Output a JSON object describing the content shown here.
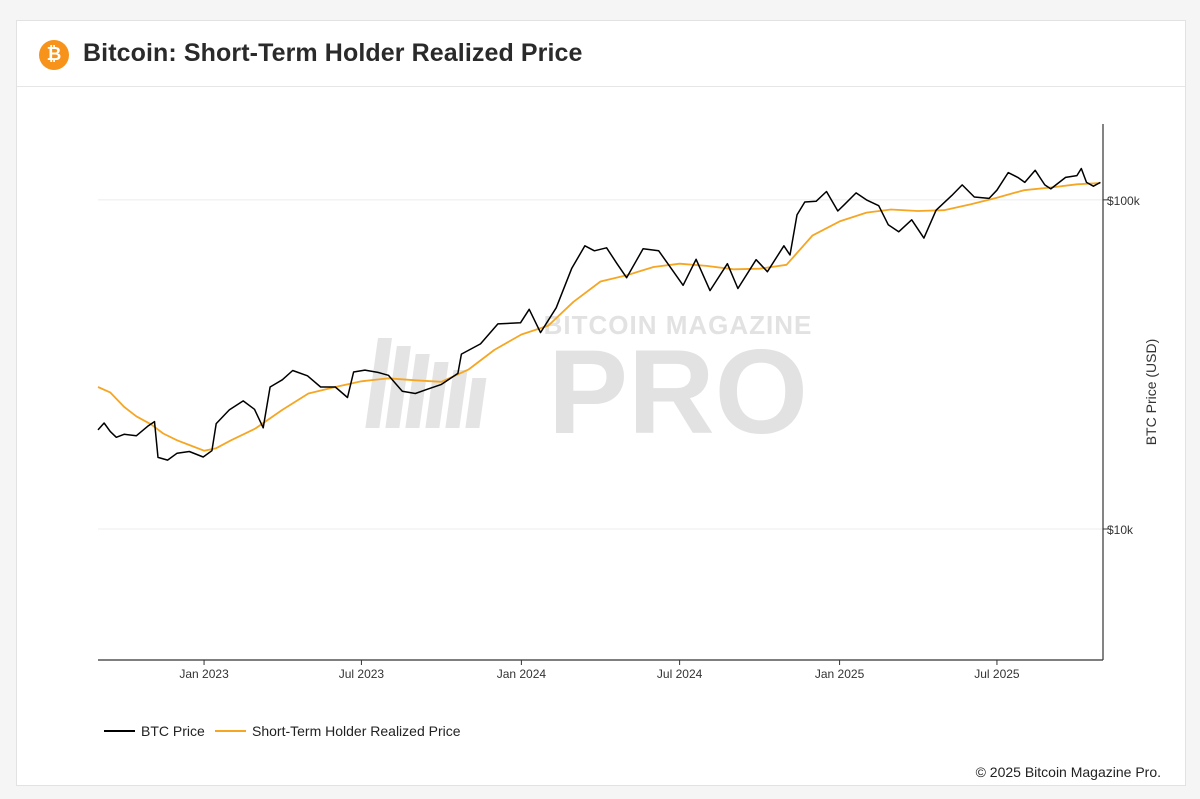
{
  "header": {
    "logo_glyph": "₿",
    "title": "Bitcoin: Short-Term Holder Realized Price"
  },
  "footer": {
    "copyright": "© 2025 Bitcoin Magazine Pro."
  },
  "watermark": {
    "top_text": "BITCOIN MAGAZINE",
    "big_text": "PRO",
    "color": "#e2e2e2"
  },
  "colors": {
    "btc": "#000000",
    "sth": "#f5a623",
    "grid": "#ececec",
    "axis": "#333333"
  },
  "chart_data": {
    "type": "line",
    "title": "Bitcoin: Short-Term Holder Realized Price",
    "xlabel": "",
    "ylabel": "BTC Price (USD)",
    "y_scale": "log",
    "ylim": [
      4000,
      170000
    ],
    "xlim": [
      "2022-09-01",
      "2025-10-31"
    ],
    "x_ticks": [
      {
        "date": "2023-01-01",
        "label": "Jan 2023"
      },
      {
        "date": "2023-07-01",
        "label": "Jul 2023"
      },
      {
        "date": "2024-01-01",
        "label": "Jan 2024"
      },
      {
        "date": "2024-07-01",
        "label": "Jul 2024"
      },
      {
        "date": "2025-01-01",
        "label": "Jan 2025"
      },
      {
        "date": "2025-07-01",
        "label": "Jul 2025"
      }
    ],
    "y_ticks": [
      {
        "value": 10000,
        "label": "$10k"
      },
      {
        "value": 100000,
        "label": "$100k"
      }
    ],
    "grid": true,
    "legend_position": "bottom-left",
    "series": [
      {
        "name": "BTC Price",
        "color": "#000000",
        "points": [
          [
            "2022-09-01",
            20000
          ],
          [
            "2022-09-08",
            21000
          ],
          [
            "2022-09-15",
            19800
          ],
          [
            "2022-09-22",
            19000
          ],
          [
            "2022-10-01",
            19400
          ],
          [
            "2022-10-15",
            19200
          ],
          [
            "2022-10-29",
            20600
          ],
          [
            "2022-11-05",
            21200
          ],
          [
            "2022-11-09",
            16500
          ],
          [
            "2022-11-20",
            16200
          ],
          [
            "2022-12-01",
            17000
          ],
          [
            "2022-12-15",
            17200
          ],
          [
            "2022-12-31",
            16550
          ],
          [
            "2023-01-10",
            17300
          ],
          [
            "2023-01-15",
            20900
          ],
          [
            "2023-01-30",
            23000
          ],
          [
            "2023-02-15",
            24500
          ],
          [
            "2023-02-28",
            23100
          ],
          [
            "2023-03-10",
            20300
          ],
          [
            "2023-03-18",
            27000
          ],
          [
            "2023-04-01",
            28400
          ],
          [
            "2023-04-13",
            30300
          ],
          [
            "2023-04-30",
            29200
          ],
          [
            "2023-05-15",
            27000
          ],
          [
            "2023-06-01",
            27000
          ],
          [
            "2023-06-15",
            25100
          ],
          [
            "2023-06-22",
            30000
          ],
          [
            "2023-07-05",
            30400
          ],
          [
            "2023-07-20",
            29900
          ],
          [
            "2023-08-01",
            29300
          ],
          [
            "2023-08-17",
            26200
          ],
          [
            "2023-09-01",
            25800
          ],
          [
            "2023-09-15",
            26600
          ],
          [
            "2023-10-01",
            27500
          ],
          [
            "2023-10-20",
            29700
          ],
          [
            "2023-10-24",
            34000
          ],
          [
            "2023-11-15",
            36500
          ],
          [
            "2023-12-05",
            42000
          ],
          [
            "2023-12-31",
            42300
          ],
          [
            "2024-01-10",
            46500
          ],
          [
            "2024-01-23",
            39500
          ],
          [
            "2024-02-10",
            47000
          ],
          [
            "2024-02-28",
            62000
          ],
          [
            "2024-03-14",
            72500
          ],
          [
            "2024-03-25",
            70000
          ],
          [
            "2024-04-08",
            71500
          ],
          [
            "2024-04-20",
            64000
          ],
          [
            "2024-05-01",
            58000
          ],
          [
            "2024-05-20",
            71000
          ],
          [
            "2024-06-07",
            70000
          ],
          [
            "2024-06-24",
            60500
          ],
          [
            "2024-07-05",
            55000
          ],
          [
            "2024-07-20",
            66000
          ],
          [
            "2024-08-05",
            53000
          ],
          [
            "2024-08-25",
            64000
          ],
          [
            "2024-09-06",
            53800
          ],
          [
            "2024-09-27",
            65800
          ],
          [
            "2024-10-10",
            60500
          ],
          [
            "2024-10-29",
            72500
          ],
          [
            "2024-11-05",
            68000
          ],
          [
            "2024-11-13",
            90000
          ],
          [
            "2024-11-22",
            98500
          ],
          [
            "2024-12-05",
            99000
          ],
          [
            "2024-12-17",
            106000
          ],
          [
            "2024-12-30",
            92500
          ],
          [
            "2025-01-07",
            97000
          ],
          [
            "2025-01-20",
            105000
          ],
          [
            "2025-02-01",
            100000
          ],
          [
            "2025-02-15",
            96000
          ],
          [
            "2025-02-26",
            84000
          ],
          [
            "2025-03-10",
            80000
          ],
          [
            "2025-03-25",
            87000
          ],
          [
            "2025-04-08",
            76500
          ],
          [
            "2025-04-22",
            93000
          ],
          [
            "2025-05-10",
            103000
          ],
          [
            "2025-05-22",
            111000
          ],
          [
            "2025-06-05",
            102000
          ],
          [
            "2025-06-22",
            101000
          ],
          [
            "2025-07-01",
            107000
          ],
          [
            "2025-07-14",
            121000
          ],
          [
            "2025-07-25",
            117000
          ],
          [
            "2025-08-02",
            113000
          ],
          [
            "2025-08-14",
            123000
          ],
          [
            "2025-08-25",
            111000
          ],
          [
            "2025-09-01",
            108000
          ],
          [
            "2025-09-18",
            117000
          ],
          [
            "2025-10-01",
            118500
          ],
          [
            "2025-10-06",
            124500
          ],
          [
            "2025-10-12",
            113000
          ],
          [
            "2025-10-20",
            110000
          ],
          [
            "2025-10-28",
            113000
          ]
        ]
      },
      {
        "name": "Short-Term Holder Realized Price",
        "color": "#f5a623",
        "points": [
          [
            "2022-09-01",
            27000
          ],
          [
            "2022-09-15",
            26000
          ],
          [
            "2022-10-01",
            23500
          ],
          [
            "2022-10-15",
            22000
          ],
          [
            "2022-11-01",
            20800
          ],
          [
            "2022-11-15",
            19500
          ],
          [
            "2022-12-01",
            18600
          ],
          [
            "2022-12-15",
            18000
          ],
          [
            "2023-01-01",
            17300
          ],
          [
            "2023-01-15",
            17600
          ],
          [
            "2023-02-01",
            18600
          ],
          [
            "2023-03-01",
            20200
          ],
          [
            "2023-04-01",
            23000
          ],
          [
            "2023-05-01",
            25800
          ],
          [
            "2023-06-01",
            27000
          ],
          [
            "2023-07-01",
            28100
          ],
          [
            "2023-08-01",
            28700
          ],
          [
            "2023-09-01",
            28300
          ],
          [
            "2023-10-01",
            28000
          ],
          [
            "2023-11-01",
            30500
          ],
          [
            "2023-12-01",
            35000
          ],
          [
            "2024-01-01",
            39000
          ],
          [
            "2024-02-01",
            41500
          ],
          [
            "2024-03-01",
            49000
          ],
          [
            "2024-04-01",
            56500
          ],
          [
            "2024-05-01",
            59000
          ],
          [
            "2024-06-01",
            62500
          ],
          [
            "2024-07-01",
            64000
          ],
          [
            "2024-08-01",
            63000
          ],
          [
            "2024-09-01",
            61500
          ],
          [
            "2024-10-01",
            61800
          ],
          [
            "2024-11-01",
            63500
          ],
          [
            "2024-12-01",
            78000
          ],
          [
            "2025-01-01",
            86000
          ],
          [
            "2025-02-01",
            91500
          ],
          [
            "2025-03-01",
            93500
          ],
          [
            "2025-04-01",
            92500
          ],
          [
            "2025-05-01",
            93000
          ],
          [
            "2025-06-01",
            97000
          ],
          [
            "2025-07-01",
            101500
          ],
          [
            "2025-08-01",
            107000
          ],
          [
            "2025-09-01",
            109000
          ],
          [
            "2025-10-01",
            111500
          ],
          [
            "2025-10-28",
            112500
          ]
        ]
      }
    ]
  }
}
